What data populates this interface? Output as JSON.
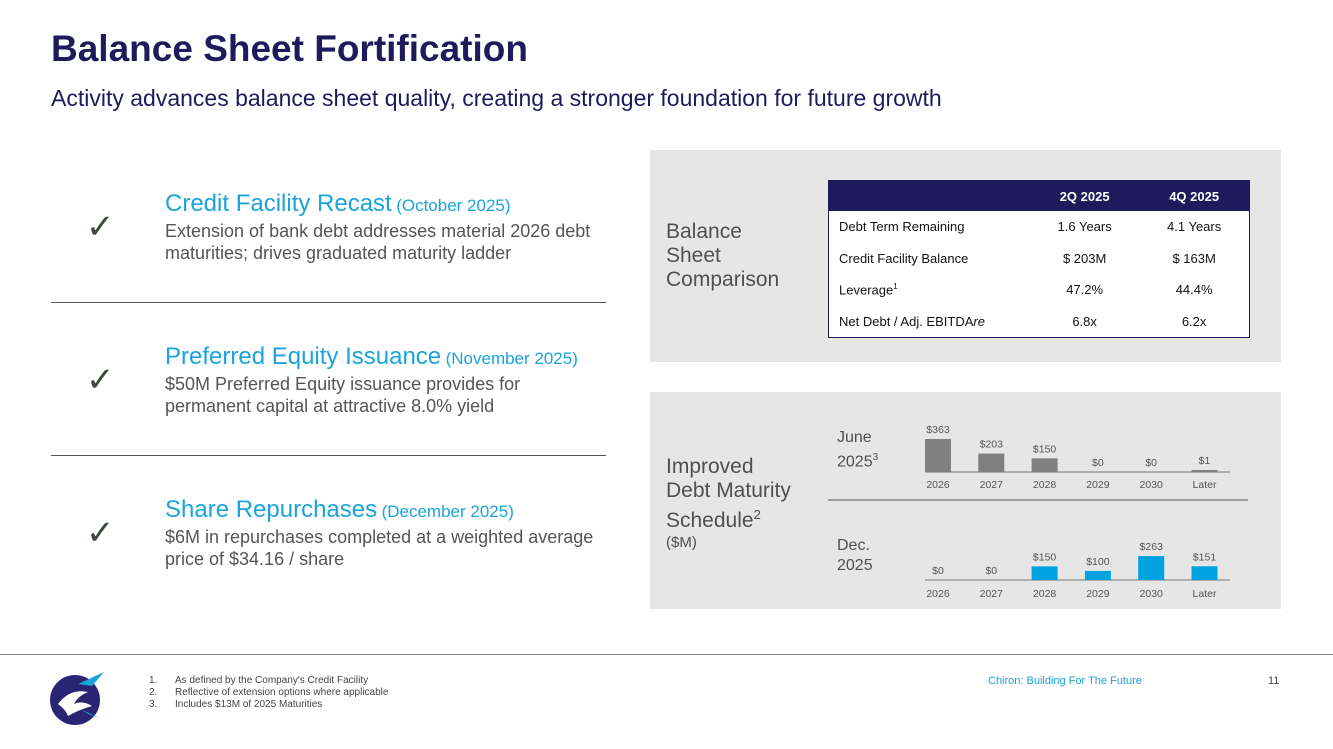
{
  "header": {
    "title": "Balance Sheet Fortification",
    "subtitle": "Activity advances balance sheet quality, creating a stronger foundation for future growth"
  },
  "items": [
    {
      "heading": "Credit Facility Recast",
      "date": "(October 2025)",
      "description": "Extension of bank debt addresses material 2026 debt maturities; drives graduated maturity ladder"
    },
    {
      "heading": "Preferred Equity Issuance",
      "date": "(November 2025)",
      "description": "$50M Preferred Equity issuance provides for permanent capital at attractive 8.0% yield"
    },
    {
      "heading": "Share Repurchases",
      "date": "(December 2025)",
      "description": "$6M in repurchases completed at a weighted average price of $34.16 / share"
    }
  ],
  "comparison": {
    "label_lines": [
      "Balance",
      "Sheet",
      "Comparison"
    ],
    "columns": [
      "",
      "2Q 2025",
      "4Q 2025"
    ],
    "rows": [
      {
        "label": "Debt Term Remaining",
        "sup": "",
        "q2": "1.6 Years",
        "q4": "4.1 Years"
      },
      {
        "label": "Credit Facility Balance",
        "sup": "",
        "q2": "$ 203M",
        "q4": "$ 163M"
      },
      {
        "label": "Leverage",
        "sup": "1",
        "q2": "47.2%",
        "q4": "44.4%"
      },
      {
        "label": "Net Debt / Adj. EBITDA",
        "label_italic": "re",
        "sup": "",
        "q2": "6.8x",
        "q4": "6.2x"
      }
    ]
  },
  "maturity": {
    "label_lines": [
      "Improved",
      "Debt Maturity",
      "Schedule"
    ],
    "label_sup": "2",
    "label_unit": "($M)"
  },
  "chart_data": {
    "type": "bar",
    "title": "Improved Debt Maturity Schedule ($M)",
    "categories": [
      "2026",
      "2027",
      "2028",
      "2029",
      "2030",
      "Later"
    ],
    "series": [
      {
        "name": "June 2025",
        "name_line1": "June",
        "name_line2": "2025",
        "name_sup": "3",
        "values": [
          363,
          203,
          150,
          0,
          0,
          1
        ],
        "labels": [
          "$363",
          "$203",
          "$150",
          "$0",
          "$0",
          "$1"
        ],
        "color": "#808080"
      },
      {
        "name": "Dec. 2025",
        "name_line1": "Dec.",
        "name_line2": "2025",
        "name_sup": "",
        "values": [
          0,
          0,
          150,
          100,
          263,
          151
        ],
        "labels": [
          "$0",
          "$0",
          "$150",
          "$100",
          "$263",
          "$151"
        ],
        "color": "#00a3e0"
      }
    ],
    "ylim": [
      0,
      363
    ]
  },
  "footer": {
    "notes": [
      {
        "num": "1.",
        "text": "As defined by the Company's Credit Facility"
      },
      {
        "num": "2.",
        "text": "Reflective of extension options where applicable"
      },
      {
        "num": "3.",
        "text": "Includes $13M of 2025 Maturities"
      }
    ],
    "tagline": "Chiron: Building For The Future",
    "page_number": "11"
  },
  "colors": {
    "navy": "#1e1a5c",
    "accent": "#1aa3dc",
    "gray_bar": "#808080",
    "blue_bar": "#00a3e0"
  }
}
